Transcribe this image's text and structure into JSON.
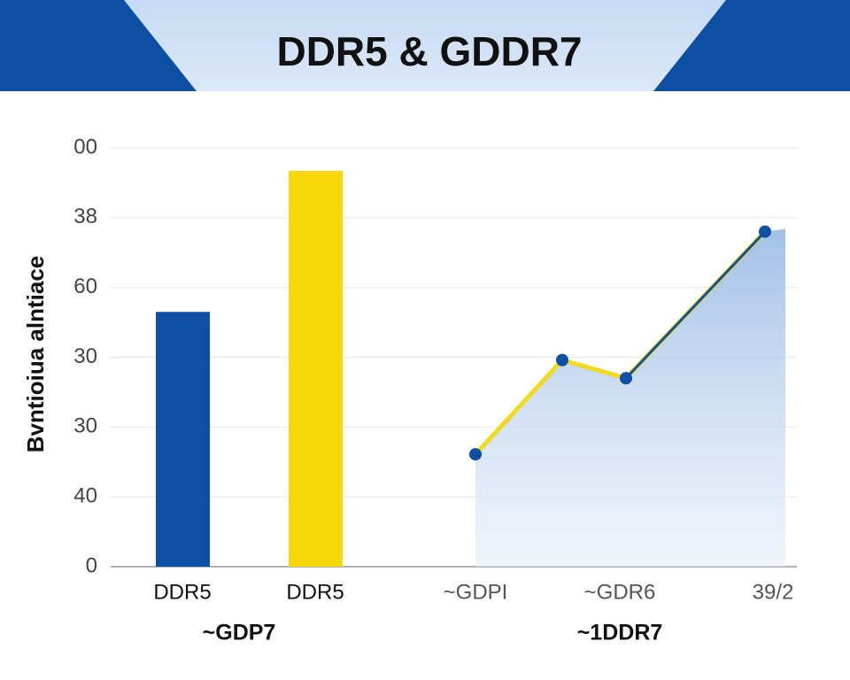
{
  "chart_data": [
    {
      "type": "bar",
      "title": "DDR5 & GDDR7",
      "y_label": "Bvntioiua alntiace",
      "group_label": "~GDP7",
      "categories": [
        "DDR5",
        "DDR5"
      ],
      "values": [
        3.65,
        5.67
      ],
      "colors": [
        "#0d4fa3",
        "#f5d90a"
      ],
      "ylim": [
        0,
        6
      ],
      "yticks": [
        0,
        {
          "value": 1,
          "label": "40"
        },
        {
          "value": 2,
          "label": "30"
        },
        {
          "value": 3,
          "label": "30"
        },
        {
          "value": 4,
          "label": "60"
        },
        {
          "value": 5,
          "label": "38"
        },
        {
          "value": 6,
          "label": "00"
        }
      ],
      "grid": true
    },
    {
      "type": "line",
      "group_label": "~1DDR7",
      "categories": [
        "~GDPI",
        null,
        "~GDR6",
        "39/2"
      ],
      "values": [
        1.61,
        2.96,
        2.7,
        4.8
      ],
      "color": "#f2d91c",
      "marker_color": "#0d4fa3",
      "area_color": "#a9c6ea",
      "ylim": [
        0,
        6
      ]
    }
  ]
}
